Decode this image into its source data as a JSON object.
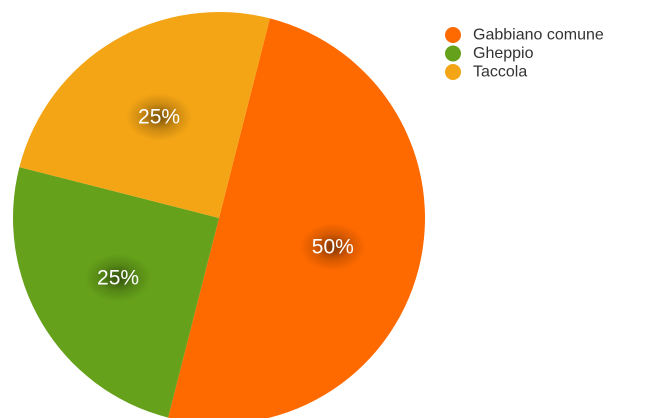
{
  "chart_data": {
    "type": "pie",
    "title": "",
    "categories": [
      "Gabbiano comune",
      "Gheppio",
      "Taccola"
    ],
    "values": [
      50,
      25,
      25
    ],
    "value_labels": [
      "50%",
      "25%",
      "25%"
    ],
    "colors": [
      "#FF6A00",
      "#65A11A",
      "#F4A515"
    ],
    "start_angle_deg": 14.3,
    "direction": "clockwise",
    "legend": {
      "placement": "top-right",
      "items": [
        {
          "label": "Gabbiano comune",
          "color": "#FF6A00"
        },
        {
          "label": "Gheppio",
          "color": "#65A11A"
        },
        {
          "label": "Taccola",
          "color": "#F4A515"
        }
      ]
    }
  }
}
